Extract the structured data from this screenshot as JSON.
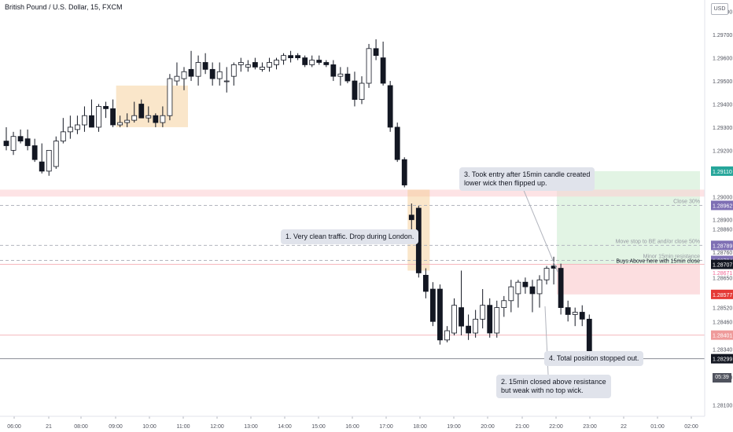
{
  "title": "British Pound / U.S. Dollar, 15, FXCM",
  "currency": "USD",
  "clock": "05:39",
  "colors": {
    "up_body": "#ffffff",
    "down_body": "#131722",
    "wick": "#131722",
    "highlight_box": "#f5c88a",
    "profit_zone": "#d6f0d8",
    "loss_zone": "#fbd0d3",
    "hline": "#b2b5be",
    "pink_line": "#f5b7bd",
    "last_price_bg": "#131722",
    "green_label": "#26a69a",
    "purple_label": "#7e6fb4",
    "red_label": "#e53935",
    "pink_label": "#ef9a9a"
  },
  "annotations": [
    {
      "id": "note-1",
      "text": "1. Very clean traffic. Drop during London."
    },
    {
      "id": "note-3",
      "lines": [
        "3. Took entry after 15min candle created",
        "lower wick then flipped up."
      ]
    },
    {
      "id": "note-4",
      "text": "4. Total position stopped out."
    },
    {
      "id": "note-2",
      "lines": [
        "2. 15min closed above resistance",
        "but weak with no top wick."
      ]
    }
  ],
  "line_labels": {
    "close30": "Close 30%",
    "move_stop": "Move stop to BE and/or close 50%",
    "minor_res": "Minor 15min resistance",
    "buys_above": "Buys Above here with 15min close"
  },
  "chart_data": {
    "type": "candlestick",
    "title": "British Pound / U.S. Dollar, 15, FXCM",
    "ylim": [
      1.2805,
      1.2985
    ],
    "y_ticks": [
      1.298,
      1.297,
      1.296,
      1.295,
      1.294,
      1.293,
      1.292,
      1.29,
      1.289,
      1.2886,
      1.2876,
      1.2865,
      1.2852,
      1.2846,
      1.2834,
      1.2822,
      1.281
    ],
    "x_ticks": [
      "06:00",
      "21",
      "08:00",
      "09:00",
      "10:00",
      "11:00",
      "12:00",
      "13:00",
      "14:00",
      "15:00",
      "16:00",
      "17:00",
      "18:00",
      "19:00",
      "20:00",
      "21:00",
      "22:00",
      "23:00",
      "22",
      "01:00",
      "02:00"
    ],
    "price_labels": [
      {
        "value": 1.2911,
        "text": "1.29110",
        "kind": "green"
      },
      {
        "value": 1.28962,
        "text": "1.28962",
        "kind": "purple"
      },
      {
        "value": 1.28789,
        "text": "1.28789",
        "kind": "purple"
      },
      {
        "value": 1.28724,
        "text": "1.28724",
        "kind": "purple"
      },
      {
        "value": 1.28707,
        "text": "1.28707",
        "kind": "dark"
      },
      {
        "value": 1.28671,
        "text": "1.28671",
        "kind": "pinktext"
      },
      {
        "value": 1.28577,
        "text": "1.28577",
        "kind": "red"
      },
      {
        "value": 1.28401,
        "text": "1.28401",
        "kind": "pink"
      },
      {
        "value": 1.28299,
        "text": "1.28299",
        "kind": "dark"
      }
    ],
    "levels": {
      "take_profit": 1.2911,
      "close30": 1.28962,
      "move_stop": 1.28789,
      "minor_resistance": 1.28724,
      "entry": 1.28707,
      "stop": 1.28577,
      "pink_level": 1.28401,
      "pink_zone": [
        1.29,
        1.2903
      ],
      "last_price": 1.28299
    },
    "candles": [
      [
        1.2924,
        1.293,
        1.292,
        1.2922
      ],
      [
        1.292,
        1.2928,
        1.2918,
        1.2926
      ],
      [
        1.2926,
        1.2929,
        1.2923,
        1.2924
      ],
      [
        1.2925,
        1.2929,
        1.292,
        1.2922
      ],
      [
        1.2922,
        1.2925,
        1.2915,
        1.2916
      ],
      [
        1.2915,
        1.2923,
        1.291,
        1.2911
      ],
      [
        1.2911,
        1.292,
        1.2909,
        1.292
      ],
      [
        1.2913,
        1.2926,
        1.2912,
        1.2924
      ],
      [
        1.2924,
        1.2934,
        1.2923,
        1.2928
      ],
      [
        1.2928,
        1.2935,
        1.2925,
        1.293
      ],
      [
        1.2929,
        1.2935,
        1.2927,
        1.2931
      ],
      [
        1.2931,
        1.2939,
        1.2928,
        1.2935
      ],
      [
        1.2935,
        1.2942,
        1.293,
        1.293
      ],
      [
        1.293,
        1.294,
        1.2928,
        1.2939
      ],
      [
        1.2939,
        1.2941,
        1.2934,
        1.2938
      ],
      [
        1.2938,
        1.2942,
        1.293,
        1.2931
      ],
      [
        1.2931,
        1.2935,
        1.293,
        1.2932
      ],
      [
        1.2932,
        1.2936,
        1.293,
        1.2933
      ],
      [
        1.2933,
        1.2941,
        1.2932,
        1.2935
      ],
      [
        1.294,
        1.2942,
        1.2934,
        1.2934
      ],
      [
        1.2934,
        1.2939,
        1.2932,
        1.2935
      ],
      [
        1.2935,
        1.2936,
        1.293,
        1.2932
      ],
      [
        1.2932,
        1.2939,
        1.293,
        1.2935
      ],
      [
        1.2935,
        1.2953,
        1.2933,
        1.2951
      ],
      [
        1.295,
        1.2958,
        1.2948,
        1.2952
      ],
      [
        1.2951,
        1.2956,
        1.2946,
        1.2954
      ],
      [
        1.2955,
        1.2963,
        1.295,
        1.2952
      ],
      [
        1.2952,
        1.2961,
        1.2948,
        1.2958
      ],
      [
        1.2958,
        1.2962,
        1.2953,
        1.2955
      ],
      [
        1.2955,
        1.2958,
        1.2948,
        1.2951
      ],
      [
        1.2951,
        1.2958,
        1.2948,
        1.2954
      ],
      [
        1.295,
        1.2956,
        1.2945,
        1.295
      ],
      [
        1.2952,
        1.2958,
        1.2948,
        1.2957
      ],
      [
        1.2957,
        1.296,
        1.2954,
        1.2958
      ],
      [
        1.2956,
        1.2959,
        1.2954,
        1.2957
      ],
      [
        1.2958,
        1.296,
        1.2955,
        1.2956
      ],
      [
        1.2955,
        1.2958,
        1.2954,
        1.2956
      ],
      [
        1.2956,
        1.296,
        1.2954,
        1.2958
      ],
      [
        1.2957,
        1.296,
        1.2955,
        1.2959
      ],
      [
        1.2959,
        1.2962,
        1.2957,
        1.2961
      ],
      [
        1.2961,
        1.2963,
        1.2958,
        1.296
      ],
      [
        1.2961,
        1.2962,
        1.2959,
        1.296
      ],
      [
        1.296,
        1.2961,
        1.2956,
        1.2957
      ],
      [
        1.2957,
        1.2961,
        1.2956,
        1.2959
      ],
      [
        1.2959,
        1.2961,
        1.2957,
        1.2958
      ],
      [
        1.2958,
        1.2959,
        1.2956,
        1.2957
      ],
      [
        1.2957,
        1.2959,
        1.295,
        1.2952
      ],
      [
        1.2952,
        1.2956,
        1.2948,
        1.2953
      ],
      [
        1.2953,
        1.2956,
        1.2949,
        1.295
      ],
      [
        1.295,
        1.2954,
        1.2939,
        1.2942
      ],
      [
        1.2942,
        1.2952,
        1.294,
        1.2949
      ],
      [
        1.2949,
        1.2966,
        1.2947,
        1.2964
      ],
      [
        1.2964,
        1.2968,
        1.2959,
        1.2961
      ],
      [
        1.296,
        1.2967,
        1.2948,
        1.2949
      ],
      [
        1.2948,
        1.295,
        1.2928,
        1.293
      ],
      [
        1.293,
        1.2932,
        1.2915,
        1.2916
      ],
      [
        1.2916,
        1.2917,
        1.2904,
        1.2905
      ],
      [
        1.2892,
        1.2897,
        1.2885,
        1.289
      ],
      [
        1.2895,
        1.2896,
        1.2865,
        1.2867
      ],
      [
        1.2866,
        1.2869,
        1.2856,
        1.2859
      ],
      [
        1.286,
        1.2863,
        1.2844,
        1.2846
      ],
      [
        1.286,
        1.2862,
        1.2836,
        1.2838
      ],
      [
        1.2838,
        1.2844,
        1.2837,
        1.2842
      ],
      [
        1.2841,
        1.2856,
        1.284,
        1.2853
      ],
      [
        1.2852,
        1.2868,
        1.284,
        1.2844
      ],
      [
        1.2844,
        1.2849,
        1.2838,
        1.2841
      ],
      [
        1.2841,
        1.2851,
        1.2839,
        1.2847
      ],
      [
        1.2847,
        1.286,
        1.2843,
        1.2853
      ],
      [
        1.2853,
        1.2856,
        1.2839,
        1.2841
      ],
      [
        1.2841,
        1.2855,
        1.2839,
        1.2852
      ],
      [
        1.2852,
        1.2857,
        1.2848,
        1.2855
      ],
      [
        1.2855,
        1.2864,
        1.285,
        1.2861
      ],
      [
        1.2858,
        1.2864,
        1.2852,
        1.2863
      ],
      [
        1.2863,
        1.2865,
        1.2858,
        1.2861
      ],
      [
        1.2861,
        1.2864,
        1.285,
        1.2858
      ],
      [
        1.2858,
        1.2866,
        1.2852,
        1.2864
      ],
      [
        1.2864,
        1.287,
        1.2862,
        1.2869
      ],
      [
        1.287,
        1.2874,
        1.2862,
        1.2869
      ],
      [
        1.2869,
        1.2871,
        1.2849,
        1.2852
      ],
      [
        1.2852,
        1.2855,
        1.2846,
        1.2849
      ],
      [
        1.2849,
        1.2852,
        1.2844,
        1.285
      ],
      [
        1.285,
        1.2853,
        1.2844,
        1.2847
      ],
      [
        1.2847,
        1.2849,
        1.283,
        1.283
      ]
    ]
  }
}
